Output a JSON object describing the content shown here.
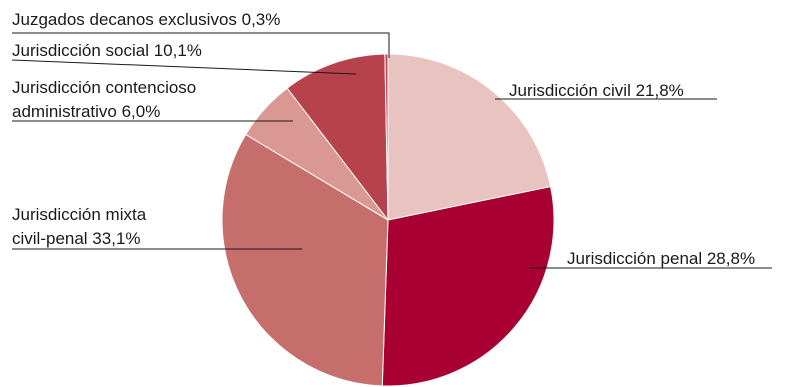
{
  "chart_data": {
    "type": "pie",
    "title": "",
    "start": "top-clockwise",
    "slices": [
      {
        "label_lines": [
          "Jurisdicción civil 21,8%"
        ],
        "value": 21.8,
        "color": "#E8C3BF"
      },
      {
        "label_lines": [
          "Jurisdicción penal 28,8%"
        ],
        "value": 28.8,
        "color": "#A90034"
      },
      {
        "label_lines": [
          "Jurisdicción mixta",
          "civil-penal 33,1%"
        ],
        "value": 33.1,
        "color": "#C66E6C"
      },
      {
        "label_lines": [
          "Jurisdicción contencioso",
          "administrativo 6,0%"
        ],
        "value": 6.0,
        "color": "#DA9893"
      },
      {
        "label_lines": [
          "Jurisdicción social 10,1%"
        ],
        "value": 10.1,
        "color": "#B8424B"
      },
      {
        "label_lines": [
          "Juzgados decanos exclusivos 0,3%"
        ],
        "value": 0.3,
        "color": "#C4484F"
      }
    ]
  }
}
